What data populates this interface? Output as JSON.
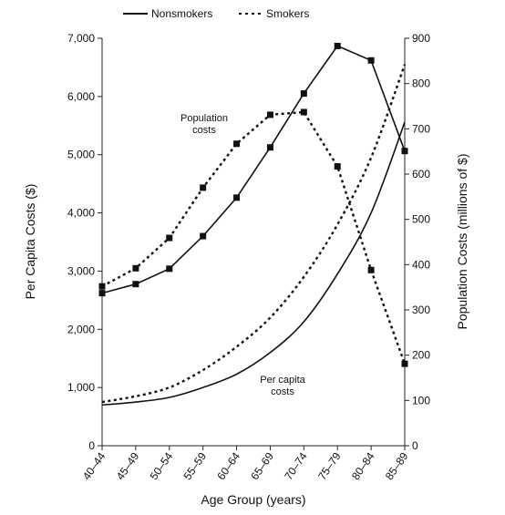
{
  "chart_data": {
    "type": "line",
    "categories": [
      "40–44",
      "45–49",
      "50–54",
      "55–59",
      "60–64",
      "65–69",
      "70–74",
      "75–79",
      "80–84",
      "85–89"
    ],
    "xlabel": "Age Group (years)",
    "ylabel_left": "Per Capita Costs ($)",
    "ylabel_right": "Population Costs (millions of $)",
    "ylim_left": [
      0,
      7000
    ],
    "ylim_right": [
      0,
      900
    ],
    "yticks_left": [
      "0",
      "1,000",
      "2,000",
      "3,000",
      "4,000",
      "5,000",
      "6,000",
      "7,000"
    ],
    "yticks_right": [
      "0",
      "100",
      "200",
      "300",
      "400",
      "500",
      "600",
      "700",
      "800",
      "900"
    ],
    "legend": {
      "position": "top",
      "items": [
        {
          "label": "Nonsmokers",
          "style": "solid"
        },
        {
          "label": "Smokers",
          "style": "dashed"
        }
      ]
    },
    "annotations": {
      "population": [
        "Population",
        "costs"
      ],
      "per_capita": [
        "Per capita",
        "costs"
      ]
    },
    "series": [
      {
        "name": "Nonsmokers",
        "measure": "per capita",
        "axis": "left",
        "style": "solid",
        "markers": false,
        "values": [
          700,
          750,
          830,
          1000,
          1230,
          1600,
          2130,
          2950,
          4000,
          5560
        ]
      },
      {
        "name": "Smokers",
        "measure": "per capita",
        "axis": "left",
        "style": "dashed",
        "markers": false,
        "values": [
          750,
          850,
          1000,
          1300,
          1700,
          2200,
          2900,
          3800,
          4950,
          6550
        ]
      },
      {
        "name": "Nonsmokers",
        "measure": "population",
        "axis": "right",
        "style": "solid",
        "markers": true,
        "values": [
          337,
          357,
          391,
          463,
          548,
          659,
          778,
          883,
          851,
          651
        ]
      },
      {
        "name": "Smokers",
        "measure": "population",
        "axis": "right",
        "style": "dashed",
        "markers": true,
        "values": [
          352,
          392,
          459,
          570,
          667,
          731,
          737,
          617,
          388,
          181
        ]
      }
    ],
    "colors": {
      "line": "#111111",
      "axis": "#222222"
    }
  }
}
